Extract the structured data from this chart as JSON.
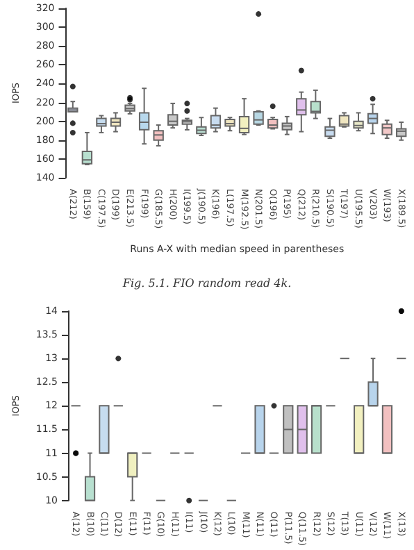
{
  "chart_data": [
    {
      "type": "box",
      "xlabel": "Runs A-X with median speed in parentheses",
      "ylabel": "IOPS",
      "annotations": [
        "Fig. 5.1. FIO random read 4k."
      ],
      "categories": [
        "A(212)",
        "B(159)",
        "C(197.5)",
        "D(199)",
        "E(213.5)",
        "F(199)",
        "G(185.5)",
        "H(200)",
        "I(199.5)",
        "J(190.5)",
        "K(196)",
        "L(197.5)",
        "M(192.5)",
        "N(201.5)",
        "O(196)",
        "P(195)",
        "Q(212)",
        "R(210.5)",
        "S(190.5)",
        "T(197)",
        "U(195.5)",
        "V(203)",
        "W(193)",
        "X(189.5)"
      ],
      "colors": [
        "#c8d0e8",
        "#b8e0d0",
        "#c6dcef",
        "#f0e6c0",
        "#c8c8c8",
        "#b8d8ec",
        "#f2c0c0",
        "#c8c8c8",
        "#d8d8d8",
        "#b8dcd0",
        "#c8dcf0",
        "#f0e6c0",
        "#f2f0c0",
        "#b8d8e4",
        "#f2c0c0",
        "#c8c8c8",
        "#e0c0ec",
        "#b8e0cc",
        "#c8dcf0",
        "#f0e6c0",
        "#e8e8c8",
        "#b8d4ec",
        "#f2c8c8",
        "#c8c8c8"
      ],
      "boxes": [
        {
          "low": 210,
          "q1": 210,
          "median": 212,
          "q3": 214,
          "high": 221,
          "outliers": [
            237,
            198,
            188
          ]
        },
        {
          "low": 154,
          "q1": 155,
          "median": 159,
          "q3": 168,
          "high": 188
        },
        {
          "low": 188,
          "q1": 195,
          "median": 197.5,
          "q3": 203,
          "high": 206
        },
        {
          "low": 189,
          "q1": 195,
          "median": 199,
          "q3": 203,
          "high": 209
        },
        {
          "low": 208,
          "q1": 211,
          "median": 213.5,
          "q3": 217,
          "high": 219,
          "outliers": [
            223,
            225
          ]
        },
        {
          "low": 176,
          "q1": 191,
          "median": 199,
          "q3": 209,
          "high": 235
        },
        {
          "low": 174,
          "q1": 180,
          "median": 185.5,
          "q3": 190,
          "high": 196
        },
        {
          "low": 193,
          "q1": 196,
          "median": 200,
          "q3": 207,
          "high": 219
        },
        {
          "low": 191,
          "q1": 197,
          "median": 199.5,
          "q3": 201,
          "high": 203,
          "outliers": [
            211,
            219
          ]
        },
        {
          "low": 185,
          "q1": 187,
          "median": 190.5,
          "q3": 194,
          "high": 204
        },
        {
          "low": 189,
          "q1": 193,
          "median": 196,
          "q3": 206,
          "high": 214
        },
        {
          "low": 190,
          "q1": 195,
          "median": 197.5,
          "q3": 202,
          "high": 204
        },
        {
          "low": 186,
          "q1": 188,
          "median": 192.5,
          "q3": 205,
          "high": 224
        },
        {
          "low": 196,
          "q1": 197,
          "median": 201.5,
          "q3": 210,
          "high": 211,
          "outliers": [
            314
          ]
        },
        {
          "low": 192,
          "q1": 193,
          "median": 196,
          "q3": 202,
          "high": 204,
          "outliers": [
            216
          ]
        },
        {
          "low": 186,
          "q1": 191,
          "median": 195,
          "q3": 198,
          "high": 205
        },
        {
          "low": 189,
          "q1": 207,
          "median": 212,
          "q3": 224,
          "high": 231,
          "outliers": [
            254
          ]
        },
        {
          "low": 203,
          "q1": 209,
          "median": 210.5,
          "q3": 221,
          "high": 233
        },
        {
          "low": 182,
          "q1": 184,
          "median": 190.5,
          "q3": 194,
          "high": 203
        },
        {
          "low": 194,
          "q1": 195,
          "median": 197,
          "q3": 206,
          "high": 209
        },
        {
          "low": 190,
          "q1": 193,
          "median": 195.5,
          "q3": 200,
          "high": 209
        },
        {
          "low": 187,
          "q1": 198,
          "median": 203,
          "q3": 208,
          "high": 218,
          "outliers": [
            224
          ]
        },
        {
          "low": 182,
          "q1": 186,
          "median": 193,
          "q3": 197,
          "high": 201
        },
        {
          "low": 180,
          "q1": 184,
          "median": 189.5,
          "q3": 192,
          "high": 199
        }
      ],
      "ylim": [
        140,
        320
      ],
      "yticks": [
        140,
        160,
        180,
        200,
        220,
        240,
        260,
        280,
        300,
        320
      ]
    },
    {
      "type": "box",
      "ylabel": "IOPS",
      "categories": [
        "A(12)",
        "B(10)",
        "C(11)",
        "D(12)",
        "E(11)",
        "F(11)",
        "G(10)",
        "H(11)",
        "I(11)",
        "J(10)",
        "K(12)",
        "L(10)",
        "M(11)",
        "N(11)",
        "O(11)",
        "P(11.5)",
        "Q(11.5)",
        "R(12)",
        "S(12)",
        "T(13)",
        "U(11)",
        "V(12)",
        "W(11)",
        "X(13)"
      ],
      "colors": [
        "#666666",
        "#b8e0d0",
        "#c6dcef",
        "#666666",
        "#f0f0c0",
        "#666666",
        "#666666",
        "#666666",
        "#666666",
        "#666666",
        "#666666",
        "#666666",
        "#666666",
        "#b8d4ec",
        "#666666",
        "#c0c0c0",
        "#e0c0ec",
        "#b8e0cc",
        "#666666",
        "#666666",
        "#f2f0c0",
        "#b8d4ec",
        "#f2c0c0",
        "#666666"
      ],
      "boxes": [
        {
          "low": 12,
          "q1": 12,
          "median": 12,
          "q3": 12,
          "high": 12,
          "outliers": [
            11,
            11
          ]
        },
        {
          "low": 10,
          "q1": 10,
          "median": 10,
          "q3": 10.5,
          "high": 11
        },
        {
          "low": 11,
          "q1": 11,
          "median": 11,
          "q3": 12,
          "high": 12
        },
        {
          "low": 12,
          "q1": 12,
          "median": 12,
          "q3": 12,
          "high": 12,
          "outliers": [
            13
          ]
        },
        {
          "low": 10,
          "q1": 10.5,
          "median": 11,
          "q3": 11,
          "high": 11
        },
        {
          "low": 11,
          "q1": 11,
          "median": 11,
          "q3": 11,
          "high": 11
        },
        {
          "low": 10,
          "q1": 10,
          "median": 10,
          "q3": 10,
          "high": 10
        },
        {
          "low": 11,
          "q1": 11,
          "median": 11,
          "q3": 11,
          "high": 11
        },
        {
          "low": 11,
          "q1": 11,
          "median": 11,
          "q3": 11,
          "high": 11,
          "outliers": [
            10
          ]
        },
        {
          "low": 10,
          "q1": 10,
          "median": 10,
          "q3": 10,
          "high": 10
        },
        {
          "low": 12,
          "q1": 12,
          "median": 12,
          "q3": 12,
          "high": 12
        },
        {
          "low": 10,
          "q1": 10,
          "median": 10,
          "q3": 10,
          "high": 10
        },
        {
          "low": 11,
          "q1": 11,
          "median": 11,
          "q3": 11,
          "high": 11
        },
        {
          "low": 11,
          "q1": 11,
          "median": 11,
          "q3": 12,
          "high": 12
        },
        {
          "low": 11,
          "q1": 11,
          "median": 11,
          "q3": 11,
          "high": 11,
          "outliers": [
            12
          ]
        },
        {
          "low": 11,
          "q1": 11,
          "median": 11.5,
          "q3": 12,
          "high": 12
        },
        {
          "low": 11,
          "q1": 11,
          "median": 11.5,
          "q3": 12,
          "high": 12
        },
        {
          "low": 11,
          "q1": 11,
          "median": 12,
          "q3": 12,
          "high": 12
        },
        {
          "low": 12,
          "q1": 12,
          "median": 12,
          "q3": 12,
          "high": 12
        },
        {
          "low": 13,
          "q1": 13,
          "median": 13,
          "q3": 13,
          "high": 13
        },
        {
          "low": 11,
          "q1": 11,
          "median": 11,
          "q3": 12,
          "high": 12
        },
        {
          "low": 12,
          "q1": 12,
          "median": 12,
          "q3": 12.5,
          "high": 13
        },
        {
          "low": 11,
          "q1": 11,
          "median": 11,
          "q3": 12,
          "high": 12
        },
        {
          "low": 13,
          "q1": 13,
          "median": 13,
          "q3": 13,
          "high": 13,
          "outliers": [
            14,
            14
          ]
        }
      ],
      "ylim": [
        10,
        14
      ],
      "yticks": [
        10,
        10.5,
        11,
        11.5,
        12,
        12.5,
        13,
        13.5,
        14
      ]
    }
  ]
}
